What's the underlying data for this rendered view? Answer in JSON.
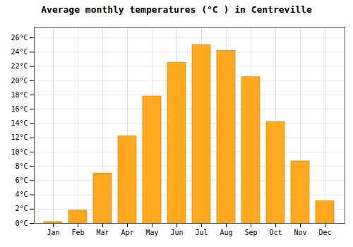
{
  "chart_data": {
    "type": "bar",
    "title": "Average monthly temperatures (°C ) in Centreville",
    "categories": [
      "Jan",
      "Feb",
      "Mar",
      "Apr",
      "May",
      "Jun",
      "Jul",
      "Aug",
      "Sep",
      "Oct",
      "Nov",
      "Dec"
    ],
    "values": [
      0.2,
      1.8,
      7.0,
      12.2,
      17.8,
      22.5,
      25.0,
      24.2,
      20.5,
      14.2,
      8.7,
      3.1
    ],
    "color": "#FFA820",
    "ylim": [
      0,
      27.5
    ],
    "yticks": [
      {
        "value": 0,
        "label": "0°C"
      },
      {
        "value": 2,
        "label": "2°C"
      },
      {
        "value": 4,
        "label": "4°C"
      },
      {
        "value": 6,
        "label": "6°C"
      },
      {
        "value": 8,
        "label": "8°C"
      },
      {
        "value": 10,
        "label": "10°C"
      },
      {
        "value": 12,
        "label": "12°C"
      },
      {
        "value": 14,
        "label": "14°C"
      },
      {
        "value": 16,
        "label": "16°C"
      },
      {
        "value": 18,
        "label": "18°C"
      },
      {
        "value": 20,
        "label": "20°C"
      },
      {
        "value": 22,
        "label": "22°C"
      },
      {
        "value": 24,
        "label": "24°C"
      },
      {
        "value": 26,
        "label": "26°C"
      }
    ],
    "grid": true
  }
}
